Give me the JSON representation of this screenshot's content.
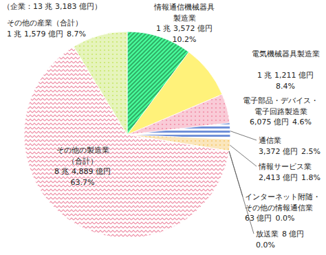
{
  "chart_data": {
    "type": "pie",
    "title": "（企業：13 兆 3,183 億円）",
    "categories": [
      "情報通信機械器具製造業",
      "電気機械器具製造業",
      "電子部品・デバイス・電子回路製造業",
      "通信業",
      "情報サービス業",
      "インターネット附随・その他の情報通信業",
      "放送業",
      "その他の製造業（合計）",
      "その他の産業（合計）"
    ],
    "values": [
      13572,
      11211,
      6075,
      3372,
      2413,
      63,
      8,
      84889,
      11579
    ],
    "value_labels": [
      "1 兆 3,572 億円",
      "1 兆 1,211 億円",
      "6,075 億円",
      "3,372 億円",
      "2,413 億円",
      "63 億円",
      "8 億円",
      "8 兆 4,889 億円",
      "1 兆 1,579 億円"
    ],
    "percent_labels": [
      "10.2%",
      "8.4%",
      "4.6%",
      "2.5%",
      "1.8%",
      "0.0%",
      "0.0%",
      "63.7%",
      "8.7%"
    ],
    "colors": [
      "#2fae66",
      "#fff27a",
      "#f28ca6",
      "#6f8fd8",
      "#f7c96b",
      "#b8b8b8",
      "#b8b8b8",
      "#ee8ca4",
      "#c9e86a"
    ],
    "data_labels": true
  }
}
